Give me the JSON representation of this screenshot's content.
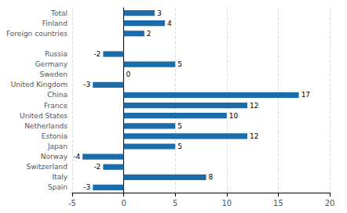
{
  "chart_data": {
    "type": "bar",
    "orientation": "horizontal",
    "categories": [
      "Spain",
      "Italy",
      "Switzerland",
      "Norway",
      "Japan",
      "Estonia",
      "Netherlands",
      "United States",
      "France",
      "China",
      "United Kingdom",
      "Sweden",
      "Germany",
      "Russia",
      null,
      "Foreign countries",
      "Finland",
      "Total"
    ],
    "values": [
      -3,
      8,
      -2,
      -4,
      5,
      12,
      5,
      10,
      12,
      17,
      -3,
      0,
      5,
      -2,
      null,
      2,
      4,
      3
    ],
    "color": "#1b6ca8",
    "xlim": [
      -5,
      20
    ],
    "xticks": [
      -5,
      0,
      5,
      10,
      15,
      20
    ],
    "grid": true,
    "data_labels": true
  }
}
